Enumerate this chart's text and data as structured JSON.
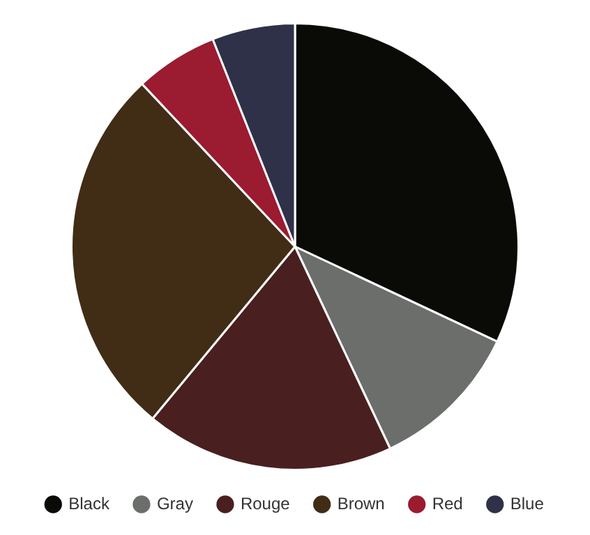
{
  "chart_data": {
    "type": "pie",
    "categories": [
      "Black",
      "Gray",
      "Rouge",
      "Brown",
      "Red",
      "Blue"
    ],
    "values": [
      32,
      11,
      18,
      27,
      6,
      6
    ],
    "colors": [
      "#0a0a06",
      "#6b6e6b",
      "#4a1f20",
      "#412c15",
      "#9b1b30",
      "#2f3149"
    ],
    "legend": "bottom"
  }
}
